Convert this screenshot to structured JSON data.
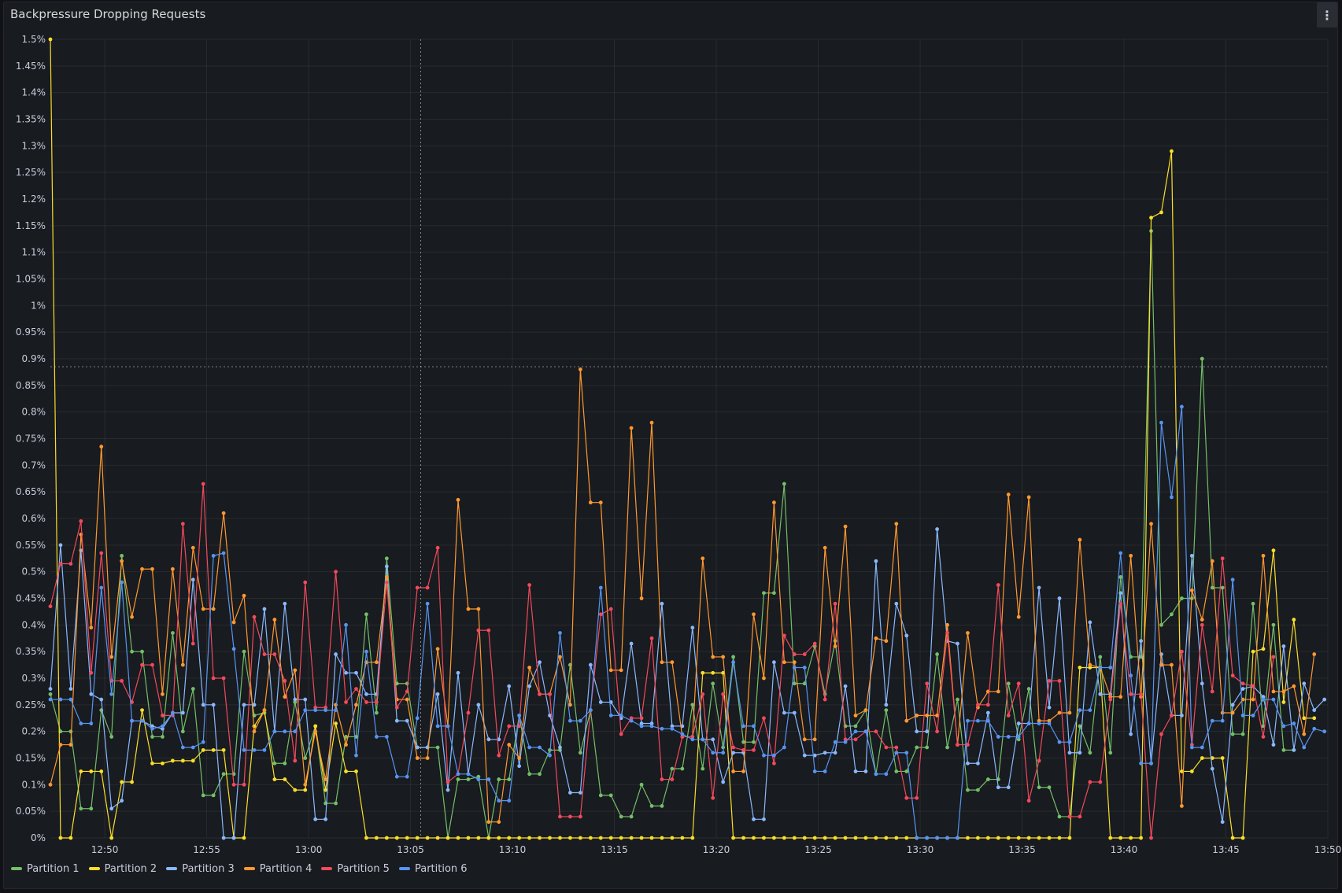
{
  "panel": {
    "title": "Backpressure Dropping Requests",
    "menu_icon": "kebab-menu-icon"
  },
  "colors": {
    "Partition 1": "#73bf69",
    "Partition 2": "#fade2a",
    "Partition 3": "#8ab8ff",
    "Partition 4": "#ff9830",
    "Partition 5": "#f2495c",
    "Partition 6": "#5794f2"
  },
  "chart_data": {
    "type": "line",
    "title": "Backpressure Dropping Requests",
    "xlabel": "",
    "ylabel": "",
    "ylim": [
      0,
      1.5
    ],
    "y_unit": "%",
    "y_ticks": [
      "0%",
      "0.05%",
      "0.1%",
      "0.15%",
      "0.2%",
      "0.25%",
      "0.3%",
      "0.35%",
      "0.4%",
      "0.45%",
      "0.5%",
      "0.55%",
      "0.6%",
      "0.65%",
      "0.7%",
      "0.75%",
      "0.8%",
      "0.85%",
      "0.9%",
      "0.95%",
      "1%",
      "1.05%",
      "1.1%",
      "1.15%",
      "1.2%",
      "1.25%",
      "1.3%",
      "1.35%",
      "1.4%",
      "1.45%",
      "1.5%"
    ],
    "x_ticks": [
      "12:50",
      "12:55",
      "13:00",
      "13:05",
      "13:10",
      "13:15",
      "13:20",
      "13:25",
      "13:30",
      "13:35",
      "13:40",
      "13:45",
      "13:50"
    ],
    "time_range": [
      "12:47:20",
      "13:50:00"
    ],
    "point_interval_seconds": 30,
    "crosshair": {
      "time": "13:05:30",
      "value": 0.885
    },
    "grid": true,
    "legend_position": "bottom-left",
    "series": [
      {
        "name": "Partition 1",
        "values": [
          0.27,
          0.2,
          0.2,
          0.055,
          0.055,
          0.24,
          0.19,
          0.53,
          0.35,
          0.35,
          0.19,
          0.19,
          0.385,
          0.2,
          0.28,
          0.08,
          0.08,
          0.12,
          0.12,
          0.35,
          0.23,
          0.235,
          0.14,
          0.14,
          0.255,
          0.15,
          0.21,
          0.065,
          0.065,
          0.19,
          0.19,
          0.42,
          0.235,
          0.525,
          0.29,
          0.29,
          0.17,
          0.17,
          0.17,
          0.0,
          0.11,
          0.11,
          0.115,
          0.0,
          0.11,
          0.11,
          0.23,
          0.12,
          0.12,
          0.165,
          0.165,
          0.325,
          0.16,
          0.24,
          0.08,
          0.08,
          0.04,
          0.04,
          0.1,
          0.06,
          0.06,
          0.13,
          0.13,
          0.25,
          0.13,
          0.29,
          0.17,
          0.34,
          0.18,
          0.18,
          0.46,
          0.46,
          0.665,
          0.29,
          0.29,
          0.36,
          0.27,
          0.37,
          0.21,
          0.21,
          0.24,
          0.12,
          0.24,
          0.125,
          0.125,
          0.17,
          0.17,
          0.345,
          0.17,
          0.26,
          0.09,
          0.09,
          0.11,
          0.11,
          0.29,
          0.185,
          0.28,
          0.095,
          0.095,
          0.04,
          0.04,
          0.21,
          0.16,
          0.34,
          0.16,
          0.49,
          0.34,
          0.34,
          1.14,
          0.4,
          0.42,
          0.45,
          0.45,
          0.9,
          0.47,
          0.47,
          0.195,
          0.195,
          0.44,
          0.21,
          0.4,
          0.165,
          0.165
        ]
      },
      {
        "name": "Partition 2",
        "values": [
          1.5,
          0.0,
          0.0,
          0.125,
          0.125,
          0.125,
          0.0,
          0.105,
          0.105,
          0.24,
          0.14,
          0.14,
          0.145,
          0.145,
          0.145,
          0.165,
          0.165,
          0.165,
          0.0,
          0.0,
          0.21,
          0.24,
          0.11,
          0.11,
          0.09,
          0.09,
          0.21,
          0.09,
          0.215,
          0.125,
          0.125,
          0.0,
          0.0,
          0.0,
          0.0,
          0.0,
          0.0,
          0.0,
          0.0,
          0.0,
          0.0,
          0.0,
          0.0,
          0.0,
          0.0,
          0.0,
          0.0,
          0.0,
          0.0,
          0.0,
          0.0,
          0.0,
          0.0,
          0.0,
          0.0,
          0.0,
          0.0,
          0.0,
          0.0,
          0.0,
          0.0,
          0.0,
          0.0,
          0.0,
          0.31,
          0.31,
          0.31,
          0.0,
          0.0,
          0.0,
          0.0,
          0.0,
          0.0,
          0.0,
          0.0,
          0.0,
          0.0,
          0.0,
          0.0,
          0.0,
          0.0,
          0.0,
          0.0,
          0.0,
          0.0,
          0.0,
          0.0,
          0.0,
          0.0,
          0.0,
          0.0,
          0.0,
          0.0,
          0.0,
          0.0,
          0.0,
          0.0,
          0.0,
          0.0,
          0.0,
          0.0,
          0.32,
          0.32,
          0.32,
          0.0,
          0.0,
          0.0,
          0.0,
          1.165,
          1.175,
          1.29,
          0.125,
          0.125,
          0.15,
          0.15,
          0.15,
          0.0,
          0.0,
          0.35,
          0.355,
          0.54,
          0.255,
          0.41,
          0.225,
          0.225
        ]
      },
      {
        "name": "Partition 3",
        "values": [
          0.28,
          0.55,
          0.28,
          0.54,
          0.27,
          0.26,
          0.055,
          0.07,
          0.22,
          0.22,
          0.21,
          0.205,
          0.235,
          0.235,
          0.485,
          0.25,
          0.25,
          0.0,
          0.0,
          0.25,
          0.25,
          0.43,
          0.2,
          0.44,
          0.26,
          0.26,
          0.035,
          0.035,
          0.345,
          0.31,
          0.31,
          0.27,
          0.27,
          0.51,
          0.22,
          0.22,
          0.17,
          0.17,
          0.27,
          0.09,
          0.31,
          0.12,
          0.25,
          0.185,
          0.185,
          0.285,
          0.135,
          0.285,
          0.33,
          0.23,
          0.17,
          0.085,
          0.085,
          0.325,
          0.255,
          0.255,
          0.225,
          0.365,
          0.215,
          0.215,
          0.44,
          0.21,
          0.21,
          0.395,
          0.185,
          0.185,
          0.105,
          0.16,
          0.16,
          0.035,
          0.035,
          0.33,
          0.235,
          0.235,
          0.155,
          0.155,
          0.16,
          0.16,
          0.285,
          0.125,
          0.125,
          0.52,
          0.25,
          0.44,
          0.38,
          0.2,
          0.2,
          0.58,
          0.37,
          0.365,
          0.14,
          0.14,
          0.235,
          0.095,
          0.095,
          0.215,
          0.215,
          0.47,
          0.245,
          0.45,
          0.16,
          0.16,
          0.405,
          0.27,
          0.27,
          0.46,
          0.195,
          0.37,
          0.14,
          0.345,
          0.23,
          0.23,
          0.53,
          0.29,
          0.13,
          0.03,
          0.25,
          0.28,
          0.285,
          0.265,
          0.175,
          0.36,
          0.165,
          0.29,
          0.24,
          0.26,
          0.26,
          0.27,
          0.215,
          0.215,
          0.385,
          0.21,
          0.395,
          0.23,
          0.23
        ]
      },
      {
        "name": "Partition 4",
        "values": [
          0.1,
          0.175,
          0.175,
          0.57,
          0.395,
          0.735,
          0.34,
          0.52,
          0.415,
          0.505,
          0.505,
          0.27,
          0.505,
          0.325,
          0.545,
          0.43,
          0.43,
          0.61,
          0.405,
          0.455,
          0.2,
          0.24,
          0.41,
          0.265,
          0.315,
          0.1,
          0.2,
          0.11,
          0.25,
          0.175,
          0.25,
          0.33,
          0.33,
          0.49,
          0.26,
          0.26,
          0.15,
          0.15,
          0.355,
          0.21,
          0.635,
          0.43,
          0.43,
          0.03,
          0.03,
          0.175,
          0.15,
          0.32,
          0.27,
          0.27,
          0.34,
          0.25,
          0.88,
          0.63,
          0.63,
          0.315,
          0.315,
          0.77,
          0.45,
          0.78,
          0.33,
          0.33,
          0.19,
          0.19,
          0.525,
          0.34,
          0.34,
          0.125,
          0.125,
          0.42,
          0.3,
          0.63,
          0.33,
          0.33,
          0.185,
          0.185,
          0.545,
          0.36,
          0.585,
          0.23,
          0.24,
          0.375,
          0.37,
          0.59,
          0.22,
          0.23,
          0.23,
          0.23,
          0.4,
          0.175,
          0.385,
          0.245,
          0.275,
          0.275,
          0.645,
          0.415,
          0.64,
          0.22,
          0.22,
          0.235,
          0.235,
          0.56,
          0.325,
          0.32,
          0.265,
          0.265,
          0.53,
          0.265,
          0.59,
          0.325,
          0.325,
          0.06,
          0.465,
          0.41,
          0.52,
          0.235,
          0.235,
          0.26,
          0.26,
          0.53,
          0.275,
          0.275,
          0.285,
          0.195,
          0.345
        ]
      },
      {
        "name": "Partition 5",
        "values": [
          0.435,
          0.515,
          0.515,
          0.595,
          0.31,
          0.535,
          0.295,
          0.295,
          0.255,
          0.325,
          0.325,
          0.23,
          0.23,
          0.59,
          0.365,
          0.665,
          0.3,
          0.3,
          0.1,
          0.1,
          0.415,
          0.345,
          0.345,
          0.295,
          0.145,
          0.48,
          0.245,
          0.245,
          0.5,
          0.255,
          0.28,
          0.255,
          0.255,
          0.48,
          0.245,
          0.275,
          0.47,
          0.47,
          0.545,
          0.105,
          0.12,
          0.235,
          0.39,
          0.39,
          0.155,
          0.21,
          0.21,
          0.475,
          0.27,
          0.27,
          0.04,
          0.04,
          0.04,
          0.24,
          0.42,
          0.43,
          0.195,
          0.225,
          0.225,
          0.375,
          0.11,
          0.11,
          0.19,
          0.19,
          0.27,
          0.075,
          0.27,
          0.17,
          0.165,
          0.165,
          0.225,
          0.14,
          0.38,
          0.345,
          0.345,
          0.365,
          0.26,
          0.44,
          0.185,
          0.185,
          0.2,
          0.2,
          0.17,
          0.17,
          0.075,
          0.075,
          0.29,
          0.2,
          0.385,
          0.175,
          0.175,
          0.25,
          0.25,
          0.475,
          0.23,
          0.29,
          0.07,
          0.145,
          0.295,
          0.295,
          0.04,
          0.04,
          0.105,
          0.105,
          0.26,
          0.44,
          0.27,
          0.27,
          0.0,
          0.195,
          0.23,
          0.35,
          0.175,
          0.4,
          0.275,
          0.525,
          0.305,
          0.29,
          0.285,
          0.19,
          0.34
        ]
      },
      {
        "name": "Partition 6",
        "values": [
          0.26,
          0.26,
          0.26,
          0.215,
          0.215,
          0.47,
          0.27,
          0.48,
          0.22,
          0.22,
          0.205,
          0.21,
          0.235,
          0.17,
          0.17,
          0.18,
          0.53,
          0.535,
          0.355,
          0.165,
          0.165,
          0.165,
          0.2,
          0.2,
          0.2,
          0.24,
          0.24,
          0.24,
          0.24,
          0.4,
          0.155,
          0.35,
          0.19,
          0.19,
          0.115,
          0.115,
          0.225,
          0.44,
          0.21,
          0.21,
          0.12,
          0.12,
          0.11,
          0.11,
          0.07,
          0.07,
          0.23,
          0.17,
          0.17,
          0.155,
          0.385,
          0.22,
          0.22,
          0.24,
          0.47,
          0.23,
          0.23,
          0.22,
          0.21,
          0.21,
          0.205,
          0.205,
          0.195,
          0.185,
          0.185,
          0.16,
          0.16,
          0.33,
          0.21,
          0.21,
          0.155,
          0.155,
          0.17,
          0.32,
          0.32,
          0.125,
          0.125,
          0.18,
          0.18,
          0.2,
          0.2,
          0.12,
          0.12,
          0.16,
          0.16,
          0.0,
          0.0,
          0.0,
          0.0,
          0.0,
          0.22,
          0.22,
          0.22,
          0.19,
          0.19,
          0.19,
          0.215,
          0.215,
          0.215,
          0.18,
          0.18,
          0.24,
          0.24,
          0.32,
          0.32,
          0.535,
          0.305,
          0.14,
          0.14,
          0.78,
          0.64,
          0.81,
          0.17,
          0.17,
          0.22,
          0.22,
          0.485,
          0.23,
          0.23,
          0.26,
          0.26,
          0.21,
          0.215,
          0.17,
          0.205,
          0.2,
          0.2,
          0.225
        ]
      }
    ]
  }
}
